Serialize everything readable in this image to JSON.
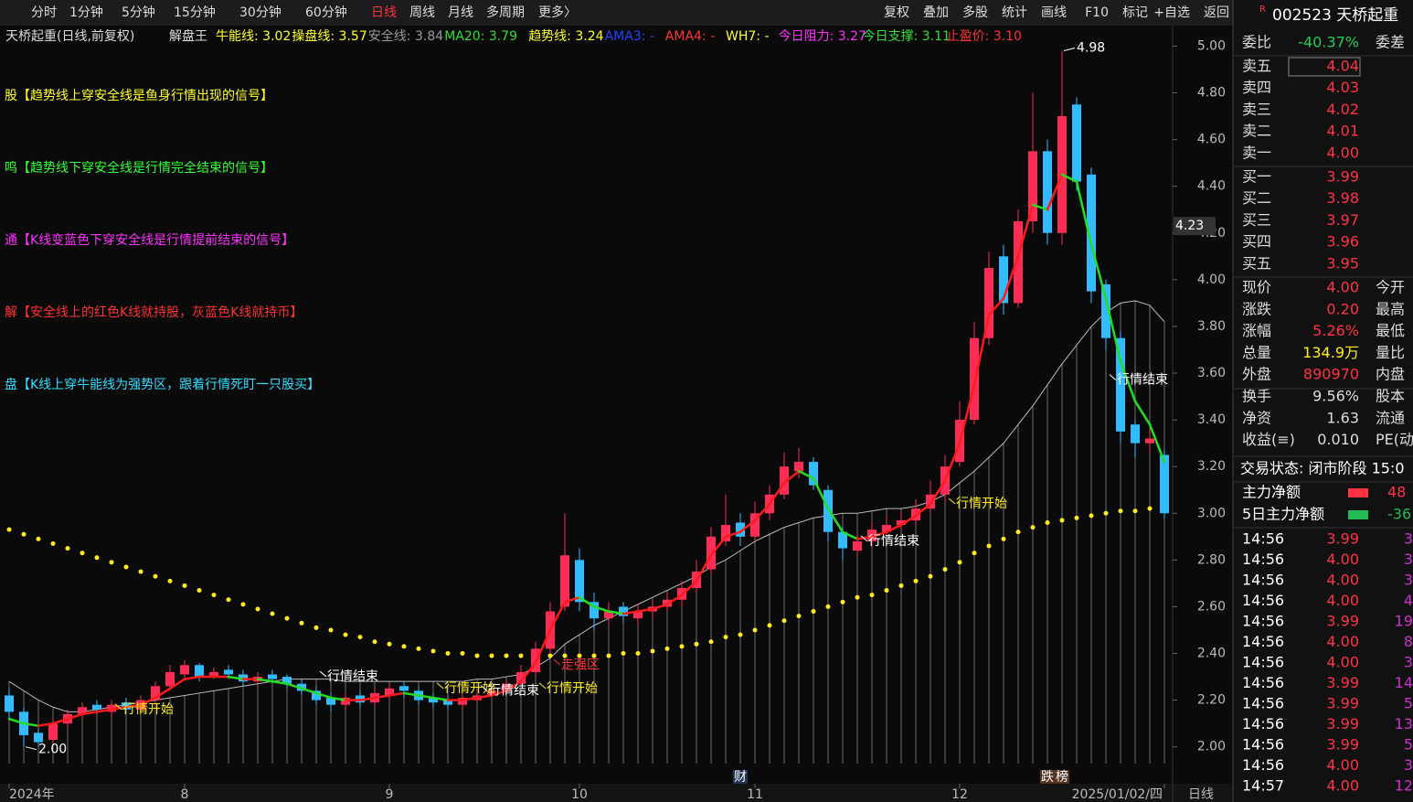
{
  "toolbar": {
    "left": [
      "分时",
      "1分钟",
      "5分钟",
      "15分钟",
      "30分钟",
      "60分钟",
      "日线",
      "周线",
      "月线",
      "多周期",
      "更多〉"
    ],
    "right": [
      "复权",
      "叠加",
      "多股",
      "统计",
      "画线",
      "F10",
      "标记",
      "+自选",
      "返回"
    ]
  },
  "header": {
    "title": "天桥起重(日线,前复权)",
    "indicator": "解盘王",
    "items": [
      {
        "text": "牛能线: 3.02",
        "color": "#ffff33"
      },
      {
        "text": "操盘线: 3.57",
        "color": "#ffff33"
      },
      {
        "text": "安全线: 3.84",
        "color": "#999999"
      },
      {
        "text": "MA20: 3.79",
        "color": "#33dd33"
      },
      {
        "text": "趋势线: 3.24",
        "color": "#ffff33"
      },
      {
        "text": "AMA3: -",
        "color": "#2244ff"
      },
      {
        "text": "AMA4: -",
        "color": "#ff3333"
      },
      {
        "text": "WH7: -",
        "color": "#ffff33"
      },
      {
        "text": "今日阻力: 3.27",
        "color": "#ff33ff"
      },
      {
        "text": "今日支撑: 3.11",
        "color": "#33dd33"
      },
      {
        "text": "止盈价: 3.10",
        "color": "#ff3333"
      }
    ]
  },
  "signals": [
    {
      "text": "股【趋势线上穿安全线是鱼身行情出现的信号】",
      "color": "#ffff33"
    },
    {
      "text": "鸣【趋势线下穿安全线是行情完全结束的信号】",
      "color": "#33ff33"
    },
    {
      "text": "通【K线变蓝色下穿安全线是行情提前结束的信号】",
      "color": "#ff33ff"
    },
    {
      "text": "解【安全线上的红色K线就持股，灰蓝色K线就持币】",
      "color": "#ff3333"
    },
    {
      "text": "盘【K线上穿牛能线为强势区，跟着行情死盯一只股买】",
      "color": "#33ddff"
    }
  ],
  "chart_data": {
    "type": "candlestick",
    "categories": [
      "2024年",
      null,
      null,
      null,
      null,
      null,
      null,
      null,
      null,
      null,
      null,
      null,
      "8",
      null,
      null,
      null,
      null,
      null,
      null,
      null,
      null,
      null,
      null,
      null,
      null,
      null,
      "9",
      null,
      null,
      null,
      null,
      null,
      null,
      null,
      null,
      null,
      null,
      null,
      null,
      "10",
      null,
      null,
      null,
      null,
      null,
      null,
      null,
      null,
      null,
      null,
      null,
      "11",
      null,
      null,
      null,
      null,
      null,
      null,
      null,
      null,
      null,
      null,
      null,
      null,
      null,
      "12",
      null,
      null,
      null,
      null,
      null,
      null,
      null,
      null,
      null,
      null,
      null,
      null,
      null,
      "2025/01/02/四"
    ],
    "open": [
      2.22,
      2.15,
      2.06,
      2.03,
      2.1,
      2.14,
      2.18,
      2.15,
      2.19,
      2.16,
      2.2,
      2.26,
      2.31,
      2.35,
      2.3,
      2.33,
      2.31,
      2.28,
      2.31,
      2.3,
      2.27,
      2.24,
      2.21,
      2.18,
      2.22,
      2.19,
      2.22,
      2.26,
      2.24,
      2.21,
      2.2,
      2.18,
      2.2,
      2.22,
      2.24,
      2.27,
      2.32,
      2.42,
      2.6,
      2.8,
      2.62,
      2.55,
      2.6,
      2.55,
      2.58,
      2.6,
      2.63,
      2.68,
      2.76,
      2.88,
      2.96,
      2.9,
      3.0,
      3.08,
      3.18,
      3.22,
      3.1,
      2.92,
      2.84,
      2.88,
      2.92,
      2.95,
      2.97,
      3.02,
      3.08,
      3.22,
      3.4,
      3.75,
      4.1,
      3.9,
      4.25,
      4.55,
      4.2,
      4.75,
      4.45,
      3.98,
      3.75,
      3.38,
      3.3,
      3.25
    ],
    "high": [
      2.25,
      2.17,
      2.08,
      2.12,
      2.16,
      2.19,
      2.2,
      2.2,
      2.21,
      2.22,
      2.28,
      2.35,
      2.37,
      2.36,
      2.34,
      2.35,
      2.33,
      2.32,
      2.33,
      2.31,
      2.29,
      2.26,
      2.23,
      2.23,
      2.24,
      2.25,
      2.27,
      2.28,
      2.26,
      2.23,
      2.22,
      2.23,
      2.24,
      2.26,
      2.29,
      2.35,
      2.45,
      2.62,
      3.0,
      2.85,
      2.66,
      2.62,
      2.62,
      2.61,
      2.63,
      2.66,
      2.71,
      2.8,
      2.94,
      3.08,
      3.0,
      3.05,
      3.12,
      3.26,
      3.28,
      3.24,
      3.12,
      2.94,
      2.91,
      2.96,
      2.99,
      3.01,
      3.06,
      3.14,
      3.25,
      3.48,
      3.82,
      4.12,
      4.15,
      4.3,
      4.8,
      4.6,
      4.98,
      4.78,
      4.48,
      4.0,
      3.78,
      3.4,
      3.36,
      3.27
    ],
    "low": [
      2.12,
      2.0,
      2.0,
      2.01,
      2.08,
      2.12,
      2.14,
      2.13,
      2.14,
      2.14,
      2.18,
      2.24,
      2.29,
      2.28,
      2.29,
      2.29,
      2.26,
      2.27,
      2.27,
      2.25,
      2.22,
      2.18,
      2.15,
      2.16,
      2.17,
      2.17,
      2.2,
      2.21,
      2.18,
      2.17,
      2.16,
      2.16,
      2.19,
      2.21,
      2.23,
      2.26,
      2.3,
      2.4,
      2.58,
      2.58,
      2.5,
      2.52,
      2.53,
      2.52,
      2.55,
      2.58,
      2.6,
      2.66,
      2.74,
      2.86,
      2.86,
      2.88,
      2.97,
      3.06,
      3.15,
      3.1,
      2.88,
      2.8,
      2.82,
      2.86,
      2.9,
      2.93,
      2.95,
      3.0,
      3.05,
      3.2,
      3.38,
      3.72,
      3.85,
      3.88,
      4.2,
      4.15,
      4.15,
      4.38,
      3.9,
      3.7,
      3.3,
      3.24,
      3.26,
      2.98
    ],
    "close": [
      2.15,
      2.05,
      2.02,
      2.1,
      2.14,
      2.17,
      2.16,
      2.18,
      2.16,
      2.2,
      2.26,
      2.32,
      2.35,
      2.3,
      2.32,
      2.31,
      2.28,
      2.3,
      2.29,
      2.27,
      2.24,
      2.2,
      2.18,
      2.21,
      2.19,
      2.23,
      2.25,
      2.24,
      2.2,
      2.19,
      2.18,
      2.21,
      2.22,
      2.24,
      2.27,
      2.32,
      2.42,
      2.58,
      2.82,
      2.62,
      2.55,
      2.58,
      2.56,
      2.58,
      2.6,
      2.63,
      2.68,
      2.75,
      2.9,
      2.95,
      2.9,
      3.0,
      3.08,
      3.2,
      3.22,
      3.12,
      2.92,
      2.85,
      2.88,
      2.93,
      2.95,
      2.97,
      3.02,
      3.08,
      3.2,
      3.4,
      3.75,
      4.05,
      3.9,
      4.25,
      4.55,
      4.2,
      4.7,
      4.42,
      3.95,
      3.75,
      3.35,
      3.3,
      3.32,
      3.0
    ],
    "trend": [
      2.12,
      2.1,
      2.09,
      2.1,
      2.12,
      2.14,
      2.15,
      2.16,
      2.17,
      2.18,
      2.21,
      2.25,
      2.29,
      2.3,
      2.3,
      2.3,
      2.29,
      2.29,
      2.28,
      2.27,
      2.25,
      2.23,
      2.21,
      2.2,
      2.2,
      2.21,
      2.22,
      2.23,
      2.22,
      2.21,
      2.2,
      2.2,
      2.21,
      2.22,
      2.24,
      2.28,
      2.36,
      2.5,
      2.62,
      2.64,
      2.6,
      2.58,
      2.57,
      2.58,
      2.59,
      2.61,
      2.65,
      2.71,
      2.82,
      2.9,
      2.92,
      2.97,
      3.04,
      3.13,
      3.18,
      3.15,
      3.02,
      2.92,
      2.89,
      2.9,
      2.92,
      2.95,
      2.99,
      3.04,
      3.14,
      3.3,
      3.55,
      3.85,
      3.92,
      4.1,
      4.32,
      4.3,
      4.45,
      4.42,
      4.15,
      3.92,
      3.65,
      3.48,
      3.38,
      3.22
    ],
    "safety": [
      2.93,
      2.91,
      2.89,
      2.87,
      2.85,
      2.83,
      2.81,
      2.79,
      2.77,
      2.75,
      2.73,
      2.71,
      2.69,
      2.67,
      2.65,
      2.63,
      2.61,
      2.59,
      2.57,
      2.55,
      2.53,
      2.51,
      2.5,
      2.48,
      2.47,
      2.45,
      2.44,
      2.43,
      2.42,
      2.41,
      2.4,
      2.4,
      2.39,
      2.39,
      2.39,
      2.39,
      2.39,
      2.39,
      2.39,
      2.39,
      2.39,
      2.39,
      2.4,
      2.4,
      2.41,
      2.42,
      2.43,
      2.44,
      2.45,
      2.47,
      2.48,
      2.5,
      2.52,
      2.54,
      2.56,
      2.58,
      2.6,
      2.62,
      2.64,
      2.65,
      2.67,
      2.69,
      2.71,
      2.73,
      2.76,
      2.79,
      2.83,
      2.86,
      2.89,
      2.92,
      2.94,
      2.96,
      2.97,
      2.98,
      2.99,
      3.0,
      3.01,
      3.01,
      3.02,
      3.02
    ],
    "band": [
      2.28,
      2.24,
      2.2,
      2.17,
      2.15,
      2.15,
      2.16,
      2.17,
      2.18,
      2.19,
      2.2,
      2.21,
      2.22,
      2.23,
      2.24,
      2.25,
      2.26,
      2.27,
      2.28,
      2.29,
      2.29,
      2.29,
      2.29,
      2.28,
      2.28,
      2.28,
      2.28,
      2.28,
      2.28,
      2.28,
      2.28,
      2.28,
      2.29,
      2.29,
      2.3,
      2.31,
      2.34,
      2.38,
      2.44,
      2.48,
      2.52,
      2.55,
      2.58,
      2.61,
      2.64,
      2.67,
      2.7,
      2.73,
      2.77,
      2.8,
      2.84,
      2.88,
      2.91,
      2.94,
      2.96,
      2.98,
      2.99,
      3.0,
      3.0,
      3.01,
      3.02,
      3.02,
      3.03,
      3.05,
      3.08,
      3.13,
      3.18,
      3.24,
      3.3,
      3.38,
      3.46,
      3.55,
      3.64,
      3.72,
      3.8,
      3.86,
      3.9,
      3.91,
      3.89,
      3.82
    ],
    "up_color": "#ff2d55",
    "down_color": "#33bbff",
    "trend_up_color": "#ff1a1a",
    "trend_down_color": "#22dd22",
    "safety_color": "#ffee22",
    "band_color": "#bbbbbb",
    "ylim": [
      1.85,
      5.08
    ],
    "yticks": [
      {
        "value": 2,
        "label": "2.00"
      },
      {
        "value": 2.2,
        "label": "2.20"
      },
      {
        "value": 2.4,
        "label": "2.40"
      },
      {
        "value": 2.6,
        "label": "2.60"
      },
      {
        "value": 2.8,
        "label": "2.80"
      },
      {
        "value": 3,
        "label": "3.00"
      },
      {
        "value": 3.2,
        "label": "3.20"
      },
      {
        "value": 3.4,
        "label": "3.40"
      },
      {
        "value": 3.6,
        "label": "3.60"
      },
      {
        "value": 3.8,
        "label": "3.80"
      },
      {
        "value": 4,
        "label": "4.00"
      },
      {
        "value": 4.2,
        "label": "4.20"
      },
      {
        "value": 4.4,
        "label": "4.40"
      },
      {
        "value": 4.6,
        "label": "4.60"
      },
      {
        "value": 4.8,
        "label": "4.80"
      },
      {
        "value": 5,
        "label": "5.00"
      }
    ],
    "last_price": {
      "value": 4.23,
      "label": "4.23"
    },
    "peak": {
      "index": 72,
      "value": 4.98,
      "label": "4.98"
    },
    "trough": {
      "index": 1,
      "value": 2,
      "label": "2.00"
    },
    "annotations": [
      {
        "text": "行情开始",
        "index": 7,
        "price": 2.16,
        "color": "#ffee22"
      },
      {
        "text": "行情结束",
        "index": 21,
        "price": 2.3,
        "color": "#ffffff"
      },
      {
        "text": "行情开始",
        "index": 29,
        "price": 2.25,
        "color": "#ffee22"
      },
      {
        "text": "行情结束",
        "index": 32,
        "price": 2.24,
        "color": "#ffffff"
      },
      {
        "text": "行情开始",
        "index": 36,
        "price": 2.25,
        "color": "#ffee22"
      },
      {
        "text": "走强区",
        "index": 37,
        "price": 2.35,
        "color": "#ff3333"
      },
      {
        "text": "行情结束",
        "index": 58,
        "price": 2.88,
        "color": "#ffffff"
      },
      {
        "text": "行情开始",
        "index": 64,
        "price": 3.04,
        "color": "#ffee22"
      },
      {
        "text": "行情结束",
        "index": 75,
        "price": 3.57,
        "color": "#ffffff"
      }
    ],
    "markers": [
      {
        "text": "财",
        "index": 50
      },
      {
        "text": "跌",
        "index": 71
      },
      {
        "text": "榜",
        "index": 72
      }
    ],
    "period": "日线"
  },
  "side": {
    "flag": "R",
    "title": "002523 天桥起重",
    "ratio": {
      "label": "委比",
      "value": "-40.37%",
      "label2": "委差"
    },
    "sells": [
      {
        "label": "卖五",
        "price": "4.04"
      },
      {
        "label": "卖四",
        "price": "4.03"
      },
      {
        "label": "卖三",
        "price": "4.02"
      },
      {
        "label": "卖二",
        "price": "4.01"
      },
      {
        "label": "卖一",
        "price": "4.00"
      }
    ],
    "buys": [
      {
        "label": "买一",
        "price": "3.99"
      },
      {
        "label": "买二",
        "price": "3.98"
      },
      {
        "label": "买三",
        "price": "3.97"
      },
      {
        "label": "买四",
        "price": "3.96"
      },
      {
        "label": "买五",
        "price": "3.95"
      }
    ],
    "stats": [
      {
        "label": "现价",
        "value": "4.00",
        "label2": "今开",
        "color": "#ff3344"
      },
      {
        "label": "涨跌",
        "value": "0.20",
        "label2": "最高",
        "color": "#ff3344"
      },
      {
        "label": "涨幅",
        "value": "5.26%",
        "label2": "最低",
        "color": "#ff3344"
      },
      {
        "label": "总量",
        "value": "134.9万",
        "label2": "量比",
        "color": "#ffee22"
      },
      {
        "label": "外盘",
        "value": "890970",
        "label2": "内盘",
        "color": "#ff3344"
      },
      {
        "label": "换手",
        "value": "9.56%",
        "label2": "股本",
        "color": "#dddddd"
      },
      {
        "label": "净资",
        "value": "1.63",
        "label2": "流通",
        "color": "#dddddd"
      },
      {
        "label": "收益(≡)",
        "value": "0.010",
        "label2": "PE(动",
        "color": "#dddddd"
      }
    ],
    "status": "交易状态: 闭市阶段 15:0",
    "flows": [
      {
        "label": "主力净额",
        "value": "48",
        "color": "#ff3344"
      },
      {
        "label": "5日主力净额",
        "value": "-36",
        "color": "#22bb55"
      }
    ],
    "trades": [
      {
        "time": "14:56",
        "price": "3.99",
        "vol": "3"
      },
      {
        "time": "14:56",
        "price": "4.00",
        "vol": "3"
      },
      {
        "time": "14:56",
        "price": "4.00",
        "vol": "3"
      },
      {
        "time": "14:56",
        "price": "4.00",
        "vol": "4"
      },
      {
        "time": "14:56",
        "price": "3.99",
        "vol": "19"
      },
      {
        "time": "14:56",
        "price": "4.00",
        "vol": "8"
      },
      {
        "time": "14:56",
        "price": "4.00",
        "vol": "3"
      },
      {
        "time": "14:56",
        "price": "3.99",
        "vol": "14"
      },
      {
        "time": "14:56",
        "price": "3.99",
        "vol": "5"
      },
      {
        "time": "14:56",
        "price": "3.99",
        "vol": "13"
      },
      {
        "time": "14:56",
        "price": "3.99",
        "vol": "5"
      },
      {
        "time": "14:56",
        "price": "4.00",
        "vol": "3"
      },
      {
        "time": "14:57",
        "price": "4.00",
        "vol": "12"
      }
    ]
  }
}
